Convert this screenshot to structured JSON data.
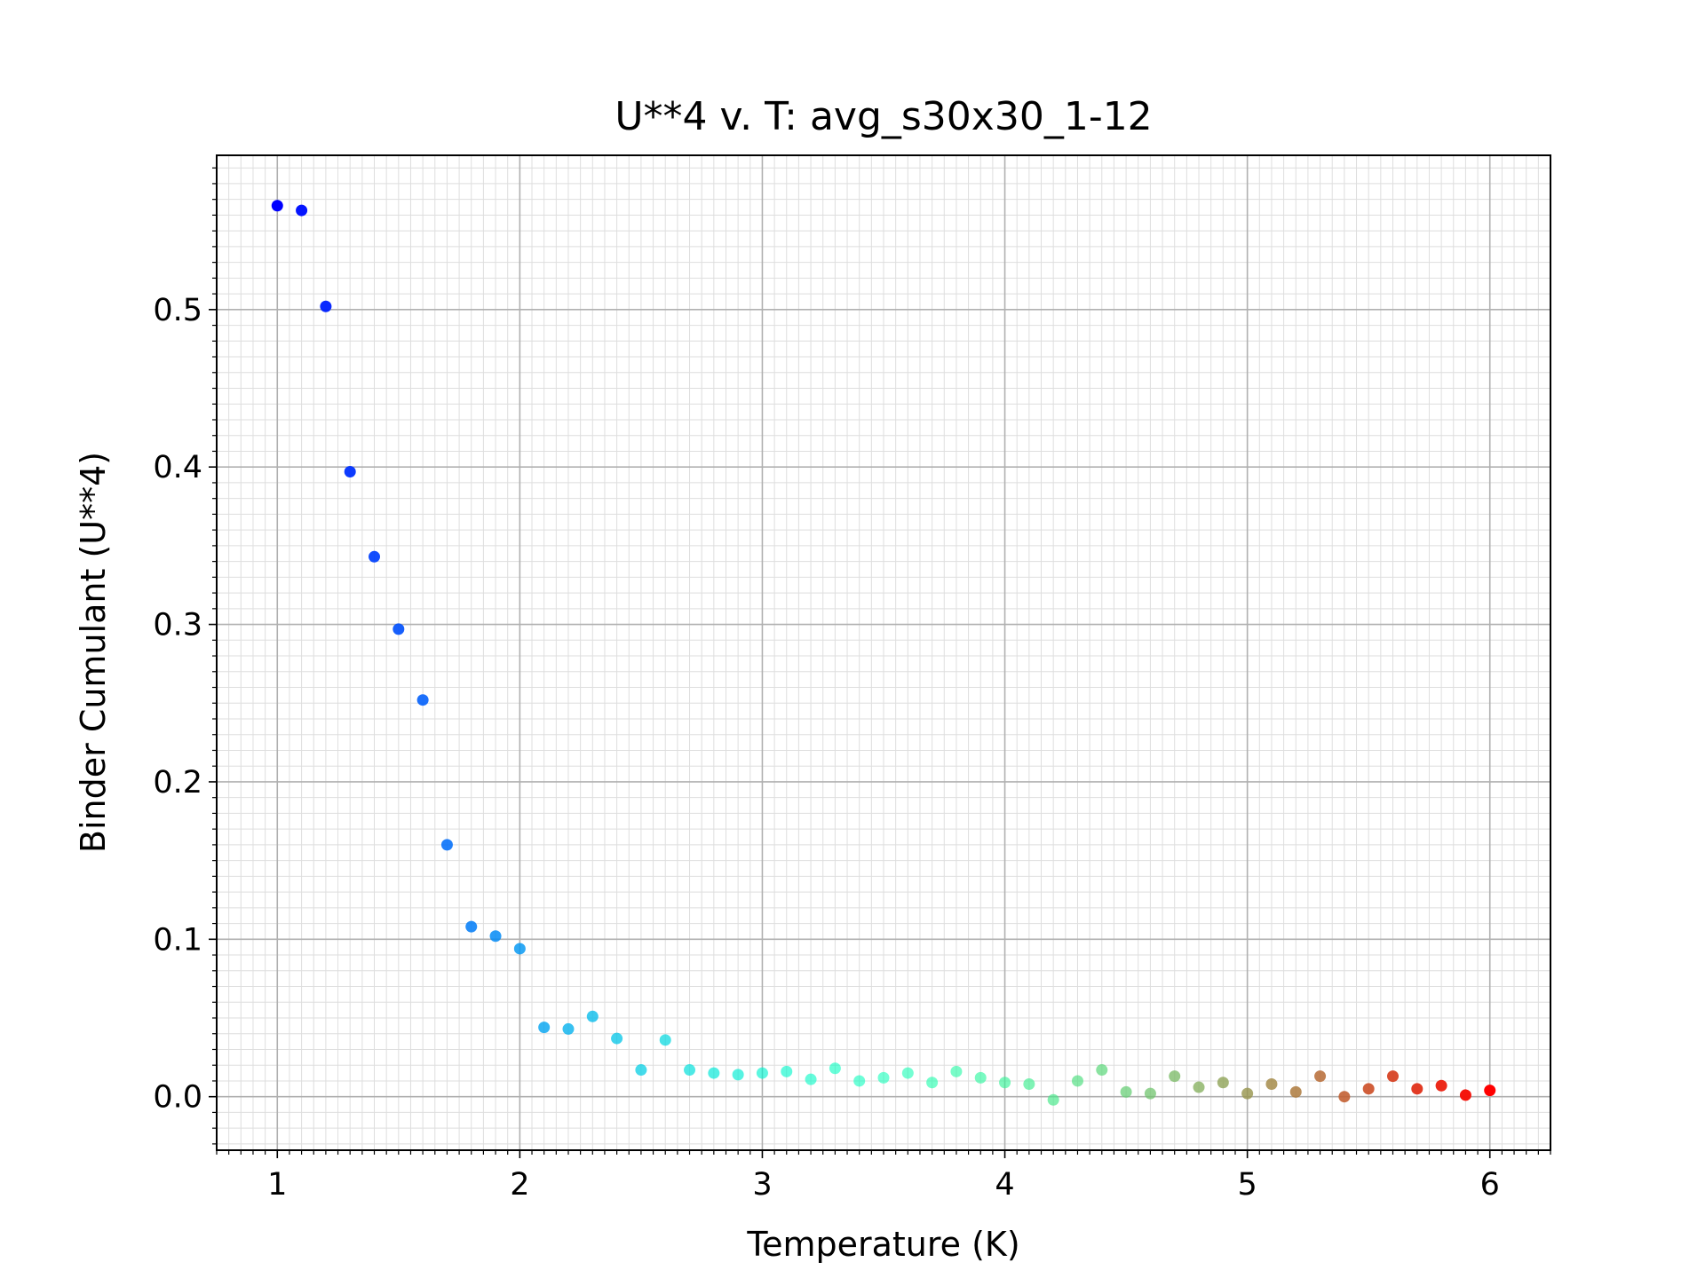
{
  "chart_data": {
    "type": "scatter",
    "title": "U**4 v. T: avg_s30x30_1-12",
    "xlabel": "Temperature (K)",
    "ylabel": "Binder Cumulant (U**4)",
    "xlim": [
      0.75,
      6.25
    ],
    "ylim": [
      -0.034,
      0.598
    ],
    "xticks": [
      1,
      2,
      3,
      4,
      5,
      6
    ],
    "yticks": [
      0.0,
      0.1,
      0.2,
      0.3,
      0.4,
      0.5
    ],
    "xtick_labels": [
      "1",
      "2",
      "3",
      "4",
      "5",
      "6"
    ],
    "ytick_labels": [
      "0.0",
      "0.1",
      "0.2",
      "0.3",
      "0.4",
      "0.5"
    ],
    "grid": true,
    "minor_grid": true,
    "colormap": "rainbow",
    "x": [
      1.0,
      1.1,
      1.2,
      1.3,
      1.4,
      1.5,
      1.6,
      1.7,
      1.8,
      1.9,
      2.0,
      2.1,
      2.2,
      2.3,
      2.4,
      2.5,
      2.6,
      2.7,
      2.8,
      2.9,
      3.0,
      3.1,
      3.2,
      3.3,
      3.4,
      3.5,
      3.6,
      3.7,
      3.8,
      3.9,
      4.0,
      4.1,
      4.2,
      4.3,
      4.4,
      4.5,
      4.6,
      4.7,
      4.8,
      4.9,
      5.0,
      5.1,
      5.2,
      5.3,
      5.4,
      5.5,
      5.6,
      5.7,
      5.8,
      5.9,
      6.0
    ],
    "y": [
      0.566,
      0.563,
      0.502,
      0.397,
      0.343,
      0.297,
      0.252,
      0.16,
      0.108,
      0.102,
      0.094,
      0.044,
      0.043,
      0.051,
      0.037,
      0.017,
      0.036,
      0.017,
      0.015,
      0.014,
      0.015,
      0.016,
      0.011,
      0.018,
      0.01,
      0.012,
      0.015,
      0.009,
      0.016,
      0.012,
      0.009,
      0.008,
      -0.002,
      0.01,
      0.017,
      0.003,
      0.002,
      0.013,
      0.006,
      0.009,
      0.002,
      0.008,
      0.003,
      0.013,
      0.0,
      0.005,
      0.013,
      0.005,
      0.007,
      0.001,
      0.004
    ]
  }
}
